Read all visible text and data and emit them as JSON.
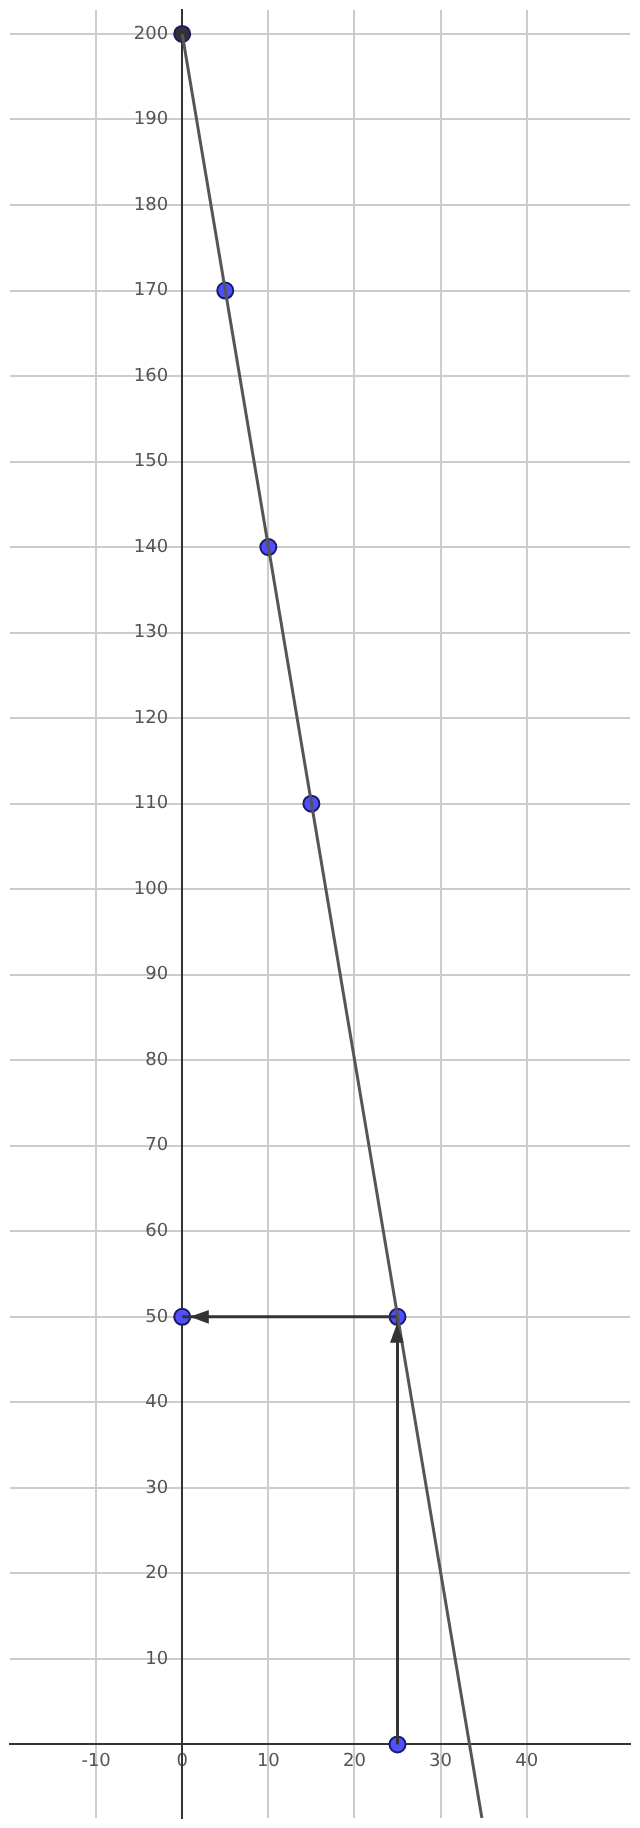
{
  "chart_data": {
    "type": "line",
    "xlim": [
      -20,
      52
    ],
    "ylim": [
      -8.6,
      202.8
    ],
    "xticks": [
      -10,
      0,
      10,
      20,
      30,
      40
    ],
    "yticks": [
      10,
      20,
      30,
      40,
      50,
      60,
      70,
      80,
      90,
      100,
      110,
      120,
      130,
      140,
      150,
      160,
      170,
      180,
      190,
      200
    ],
    "grid": true,
    "legend": false,
    "marker": "circle",
    "series": [
      {
        "color": "#555555",
        "x": [
          0,
          34.8
        ],
        "values": [
          200,
          -8.6
        ],
        "marker": "none"
      },
      {
        "color": "#333333",
        "x": [
          25,
          25
        ],
        "values": [
          0,
          50
        ],
        "marker": "none"
      },
      {
        "color": "#333333",
        "x": [
          25,
          0
        ],
        "values": [
          50,
          50
        ],
        "marker": "none"
      },
      {
        "type": "scatter",
        "color": "#333333",
        "x": [
          0
        ],
        "values": [
          200
        ]
      },
      {
        "type": "scatter",
        "color": "#4f4fff",
        "x": [
          5,
          10,
          15,
          25,
          25,
          0
        ],
        "values": [
          170,
          140,
          110,
          50,
          0,
          50
        ]
      }
    ]
  }
}
